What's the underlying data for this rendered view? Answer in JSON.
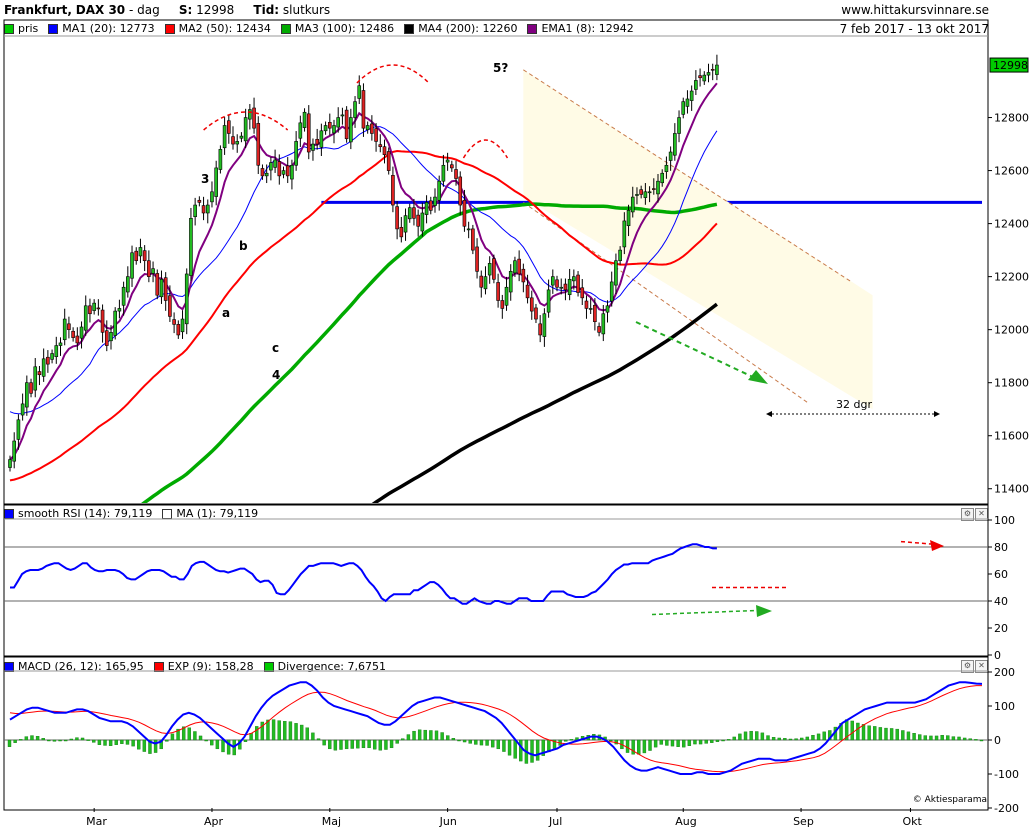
{
  "header": {
    "market": "Frankfurt,",
    "instrument": "DAX 30",
    "separator": "-",
    "interval": "dag",
    "last_label": "S:",
    "last_value": "12998",
    "time_label": "Tid:",
    "time_value": "slutkurs",
    "source": "www.hittakursvinnare.se",
    "date_range": "7 feb 2017 - 13 okt 2017"
  },
  "colors": {
    "pris": "#00aa00",
    "ma1": "#0000ff",
    "ma2": "#ff0000",
    "ma3": "#00aa00",
    "ma4": "#000000",
    "ema1": "#800080",
    "bull": "#22bb22",
    "bear": "#dd2222"
  },
  "legend_main": [
    {
      "label": "pris",
      "color": "#00cc00"
    },
    {
      "label": "MA1 (20): 12773",
      "color": "#0000ff"
    },
    {
      "label": "MA2 (50): 12434",
      "color": "#ff0000"
    },
    {
      "label": "MA3 (100): 12486",
      "color": "#00aa00"
    },
    {
      "label": "MA4 (200): 12260",
      "color": "#000000"
    },
    {
      "label": "EMA1 (8): 12942",
      "color": "#800080"
    }
  ],
  "legend_rsi": [
    {
      "label": "smooth RSI (14): 79,119",
      "color": "#0000ff"
    },
    {
      "label": "MA (1): 79,119",
      "color": "#ffffff"
    }
  ],
  "legend_macd": [
    {
      "label": "MACD (26, 12): 165,95",
      "color": "#0000ff"
    },
    {
      "label": "EXP (9): 158,28",
      "color": "#ff0000"
    },
    {
      "label": "Divergence: 7,6751",
      "color": "#00cc00"
    }
  ],
  "annotations": {
    "wave_3": "3",
    "wave_4": "4",
    "wave_5": "5?",
    "wave_a": "a",
    "wave_b": "b",
    "wave_c": "c",
    "duration": "32 dgr"
  },
  "copyright": "© Aktiesparama",
  "chart_data": [
    {
      "type": "candlestick",
      "title": "Frankfurt, DAX 30 - dag",
      "ylim": [
        11350,
        13100
      ],
      "yticks": [
        11400,
        11600,
        11800,
        12000,
        12200,
        12400,
        12600,
        12800,
        12998
      ],
      "ytick_labels": [
        "11400",
        "11600",
        "11800",
        "12000",
        "12200",
        "12400",
        "12600",
        "12800",
        "12998"
      ],
      "xlabels": [
        "Mar",
        "Apr",
        "Maj",
        "Jun",
        "Jul",
        "Aug",
        "Sep",
        "Okt"
      ],
      "xlabel_days": [
        20,
        48,
        76,
        104,
        130,
        160,
        188,
        214
      ],
      "day_range": [
        0,
        231
      ],
      "closes": [
        11510,
        11580,
        11660,
        11720,
        11800,
        11760,
        11860,
        11830,
        11890,
        11870,
        11910,
        11940,
        11950,
        12040,
        12000,
        11970,
        11950,
        12010,
        12090,
        12060,
        12100,
        12080,
        11990,
        11940,
        11990,
        12070,
        12080,
        12160,
        12200,
        12290,
        12260,
        12310,
        12260,
        12200,
        12230,
        12130,
        12190,
        12110,
        12050,
        12020,
        11980,
        12040,
        12210,
        12420,
        12470,
        12480,
        12440,
        12470,
        12520,
        12610,
        12680,
        12770,
        12740,
        12700,
        12710,
        12730,
        12800,
        12830,
        12760,
        12620,
        12580,
        12590,
        12630,
        12640,
        12580,
        12600,
        12580,
        12620,
        12710,
        12780,
        12820,
        12670,
        12700,
        12700,
        12750,
        12770,
        12760,
        12770,
        12800,
        12810,
        12720,
        12800,
        12860,
        12920,
        12760,
        12770,
        12740,
        12710,
        12690,
        12660,
        12600,
        12470,
        12380,
        12350,
        12430,
        12460,
        12420,
        12390,
        12440,
        12480,
        12450,
        12500,
        12560,
        12620,
        12640,
        12610,
        12570,
        12470,
        12390,
        12380,
        12300,
        12220,
        12160,
        12200,
        12250,
        12190,
        12110,
        12080,
        12160,
        12220,
        12260,
        12210,
        12180,
        12120,
        12070,
        12040,
        11980,
        12060,
        12150,
        12200,
        12160,
        12160,
        12150,
        12190,
        12200,
        12140,
        12120,
        12080,
        12080,
        12030,
        11990,
        12060,
        12090,
        12180,
        12260,
        12300,
        12410,
        12450,
        12500,
        12510,
        12510,
        12520,
        12520,
        12530,
        12560,
        12590,
        12620,
        12670,
        12740,
        12800,
        12860,
        12870,
        12900,
        12940,
        12950,
        12960,
        12970,
        12980,
        12998
      ],
      "ma_periods": {
        "MA1": 20,
        "MA2": 50,
        "MA3": 100,
        "MA4": 200,
        "EMA1": 8
      },
      "ma_start_values": {
        "MA1": 11700,
        "MA2": 11430,
        "MA3": 11040,
        "MA4": 10560
      },
      "resistance_level": 12480,
      "resistance_days": [
        74,
        231
      ]
    },
    {
      "type": "line",
      "title": "smooth RSI (14)",
      "ylim": [
        0,
        100
      ],
      "yticks": [
        0,
        20,
        40,
        60,
        80,
        100
      ],
      "reference_lines": [
        40,
        80
      ],
      "series": [
        {
          "name": "smooth RSI (14)",
          "values": [
            50,
            50,
            55,
            60,
            62,
            63,
            63,
            63,
            64,
            66,
            67,
            68,
            68,
            66,
            64,
            63,
            64,
            66,
            68,
            68,
            65,
            63,
            62,
            62,
            63,
            63,
            63,
            62,
            60,
            57,
            56,
            56,
            58,
            60,
            62,
            63,
            63,
            63,
            62,
            60,
            58,
            58,
            56,
            56,
            60,
            66,
            68,
            69,
            69,
            67,
            65,
            63,
            62,
            62,
            61,
            62,
            63,
            64,
            64,
            62,
            60,
            56,
            54,
            55,
            55,
            52,
            46,
            45,
            45,
            48,
            52,
            56,
            60,
            63,
            66,
            66,
            67,
            68,
            68,
            68,
            68,
            67,
            66,
            67,
            68,
            68,
            66,
            63,
            58,
            54,
            51,
            47,
            42,
            40,
            43,
            45,
            45,
            45,
            45,
            45,
            48,
            48,
            50,
            52,
            54,
            54,
            52,
            49,
            45,
            42,
            42,
            40,
            38,
            38,
            40,
            42,
            40,
            39,
            38,
            38,
            40,
            40,
            39,
            38,
            38,
            40,
            42,
            42,
            42,
            40,
            40,
            40,
            40,
            44,
            47,
            47,
            47,
            47,
            45,
            44,
            43,
            43,
            43,
            44,
            46,
            47,
            50,
            53,
            56,
            60,
            63,
            65,
            67,
            67,
            68,
            68,
            68,
            68,
            68,
            70,
            71,
            72,
            73,
            74,
            75,
            77,
            79,
            80,
            81,
            82,
            82,
            81,
            80,
            80,
            79,
            79
          ]
        }
      ]
    },
    {
      "type": "line",
      "title": "MACD (26, 12)",
      "ylim": [
        -200,
        200
      ],
      "yticks": [
        -200,
        -100,
        0,
        100,
        200
      ],
      "series": [
        {
          "name": "MACD (26, 12)",
          "values": [
            60,
            70,
            80,
            90,
            95,
            95,
            90,
            85,
            80,
            80,
            80,
            85,
            90,
            90,
            85,
            75,
            65,
            60,
            55,
            55,
            55,
            50,
            40,
            25,
            10,
            -5,
            -10,
            -5,
            15,
            40,
            60,
            75,
            80,
            75,
            65,
            50,
            35,
            20,
            5,
            -10,
            -20,
            -10,
            10,
            40,
            70,
            95,
            115,
            130,
            140,
            150,
            160,
            165,
            170,
            170,
            160,
            145,
            125,
            110,
            100,
            95,
            90,
            85,
            80,
            75,
            70,
            60,
            50,
            45,
            45,
            55,
            70,
            85,
            100,
            110,
            115,
            120,
            125,
            125,
            120,
            115,
            110,
            105,
            100,
            95,
            90,
            85,
            75,
            65,
            50,
            30,
            10,
            -10,
            -30,
            -40,
            -45,
            -40,
            -35,
            -30,
            -25,
            -15,
            -10,
            -5,
            0,
            5,
            10,
            10,
            5,
            -5,
            -20,
            -40,
            -60,
            -75,
            -85,
            -90,
            -90,
            -85,
            -80,
            -85,
            -90,
            -95,
            -100,
            -100,
            -100,
            -95,
            -95,
            -100,
            -100,
            -100,
            -95,
            -90,
            -80,
            -70,
            -65,
            -60,
            -55,
            -55,
            -55,
            -60,
            -60,
            -60,
            -55,
            -50,
            -45,
            -40,
            -35,
            -25,
            -10,
            10,
            30,
            50,
            60,
            70,
            80,
            90,
            95,
            100,
            105,
            110,
            110,
            110,
            110,
            110,
            110,
            115,
            120,
            130,
            140,
            150,
            160,
            165,
            170,
            170,
            168,
            166,
            165
          ]
        },
        {
          "name": "EXP (9)",
          "values": [
            80,
            78,
            78,
            80,
            82,
            84,
            85,
            85,
            84,
            83,
            82,
            82,
            83,
            84,
            84,
            82,
            79,
            76,
            72,
            69,
            66,
            63,
            58,
            52,
            44,
            35,
            27,
            21,
            19,
            22,
            28,
            36,
            44,
            50,
            53,
            53,
            50,
            46,
            40,
            32,
            24,
            17,
            15,
            20,
            30,
            42,
            56,
            70,
            83,
            95,
            106,
            116,
            126,
            134,
            139,
            141,
            140,
            136,
            130,
            123,
            116,
            110,
            104,
            98,
            93,
            87,
            80,
            73,
            68,
            65,
            66,
            69,
            74,
            80,
            86,
            92,
            98,
            103,
            107,
            110,
            111,
            111,
            110,
            108,
            105,
            101,
            96,
            91,
            84,
            75,
            64,
            52,
            39,
            26,
            15,
            6,
            0,
            -5,
            -9,
            -11,
            -12,
            -12,
            -11,
            -9,
            -7,
            -5,
            -4,
            -5,
            -8,
            -14,
            -23,
            -33,
            -43,
            -52,
            -59,
            -64,
            -67,
            -69,
            -72,
            -75,
            -79,
            -83,
            -86,
            -88,
            -90,
            -92,
            -93,
            -93,
            -93,
            -91,
            -88,
            -84,
            -80,
            -76,
            -72,
            -70,
            -68,
            -67,
            -65,
            -63,
            -61,
            -58,
            -55,
            -52,
            -47,
            -39,
            -28,
            -16,
            -3,
            10,
            22,
            34,
            45,
            54,
            63,
            70,
            77,
            82,
            86,
            90,
            94,
            97,
            102,
            108,
            115,
            123,
            131,
            138,
            145,
            151,
            155,
            158,
            160,
            160
          ]
        },
        {
          "name": "Divergence",
          "values": [
            -20,
            -8,
            2,
            10,
            13,
            11,
            5,
            0,
            -4,
            -3,
            -2,
            3,
            7,
            6,
            1,
            -7,
            -14,
            -16,
            -17,
            -14,
            -11,
            -13,
            -18,
            -27,
            -34,
            -40,
            -37,
            -26,
            -4,
            18,
            32,
            39,
            36,
            25,
            12,
            -3,
            -15,
            -26,
            -35,
            -42,
            -44,
            -27,
            -5,
            20,
            40,
            53,
            59,
            60,
            57,
            55,
            54,
            49,
            44,
            36,
            21,
            4,
            -15,
            -26,
            -30,
            -28,
            -26,
            -25,
            -24,
            -23,
            -23,
            -27,
            -30,
            -28,
            -23,
            -10,
            4,
            16,
            26,
            30,
            29,
            28,
            27,
            22,
            13,
            5,
            -1,
            -6,
            -10,
            -13,
            -15,
            -16,
            -21,
            -26,
            -34,
            -45,
            -54,
            -62,
            -69,
            -66,
            -60,
            -46,
            -35,
            -25,
            -16,
            -4,
            2,
            7,
            11,
            14,
            17,
            15,
            9,
            0,
            -12,
            -26,
            -37,
            -42,
            -42,
            -38,
            -31,
            -21,
            -13,
            -16,
            -18,
            -20,
            -21,
            -17,
            -12,
            -12,
            -10,
            -8,
            -5,
            -1,
            2,
            9,
            18,
            24,
            26,
            25,
            21,
            13,
            8,
            6,
            5,
            3,
            4,
            6,
            9,
            14,
            18,
            24,
            28,
            38,
            49,
            60,
            56,
            50,
            46,
            42,
            40,
            37,
            35,
            34,
            32,
            28,
            24,
            20,
            16,
            13,
            12,
            12,
            14,
            13,
            10,
            9,
            6,
            4,
            2,
            0
          ]
        }
      ]
    }
  ]
}
